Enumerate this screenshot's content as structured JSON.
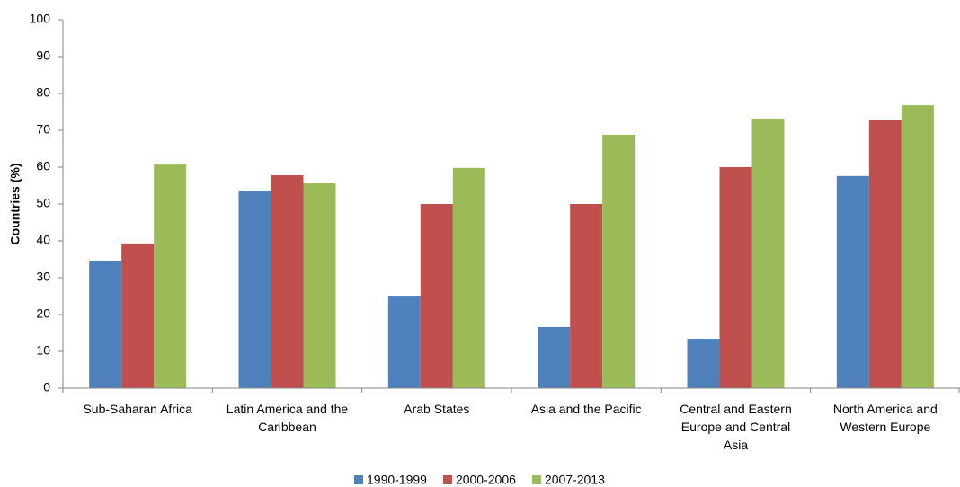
{
  "chart_data": {
    "type": "bar",
    "y_label": "Countries (%)",
    "categories": [
      "Sub-Saharan Africa",
      "Latin America and the Caribbean",
      "Arab States",
      "Asia and the Pacific",
      "Central and Eastern Europe and Central Asia",
      "North America and Western Europe"
    ],
    "series": [
      {
        "name": "1990-1999",
        "color": "#4f81bd",
        "values": [
          34.6,
          53.4,
          25.1,
          16.6,
          13.4,
          57.6
        ]
      },
      {
        "name": "2000-2006",
        "color": "#c0504d",
        "values": [
          39.3,
          57.8,
          50,
          50,
          60,
          72.9
        ]
      },
      {
        "name": "2007-2013",
        "color": "#9bbb59",
        "values": [
          60.7,
          55.6,
          59.8,
          68.8,
          73.2,
          76.8
        ]
      }
    ],
    "ylim": [
      0,
      100
    ],
    "yticks": [
      0,
      10,
      20,
      30,
      40,
      50,
      60,
      70,
      80,
      90,
      100
    ],
    "grid": false,
    "legend": "bottom"
  }
}
